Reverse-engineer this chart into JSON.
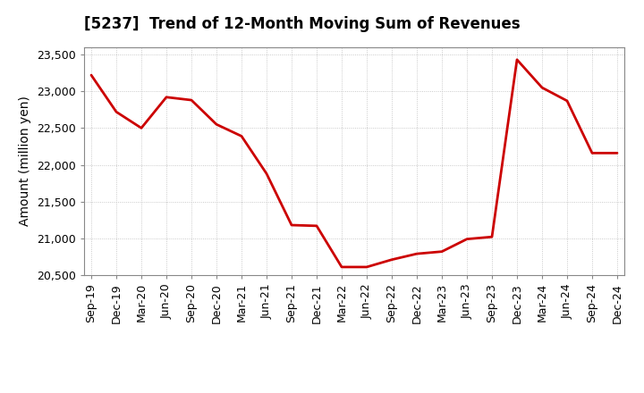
{
  "title": "[5237]  Trend of 12-Month Moving Sum of Revenues",
  "ylabel": "Amount (million yen)",
  "line_color": "#CC0000",
  "background_color": "#FFFFFF",
  "plot_bg_color": "#FFFFFF",
  "grid_color": "#BBBBBB",
  "ylim": [
    20500,
    23600
  ],
  "yticks": [
    20500,
    21000,
    21500,
    22000,
    22500,
    23000,
    23500
  ],
  "x_labels": [
    "Sep-19",
    "Dec-19",
    "Mar-20",
    "Jun-20",
    "Sep-20",
    "Dec-20",
    "Mar-21",
    "Jun-21",
    "Sep-21",
    "Dec-21",
    "Mar-22",
    "Jun-22",
    "Sep-22",
    "Dec-22",
    "Mar-23",
    "Jun-23",
    "Sep-23",
    "Dec-23",
    "Mar-24",
    "Jun-24",
    "Sep-24",
    "Dec-24"
  ],
  "values": [
    23220,
    22720,
    22500,
    22920,
    22880,
    22550,
    22390,
    21880,
    21180,
    21170,
    20610,
    20610,
    20710,
    20790,
    20820,
    20990,
    21020,
    23430,
    23050,
    22870,
    22160,
    22160
  ],
  "title_fontsize": 12,
  "ylabel_fontsize": 10,
  "tick_fontsize": 9,
  "linewidth": 2.0
}
